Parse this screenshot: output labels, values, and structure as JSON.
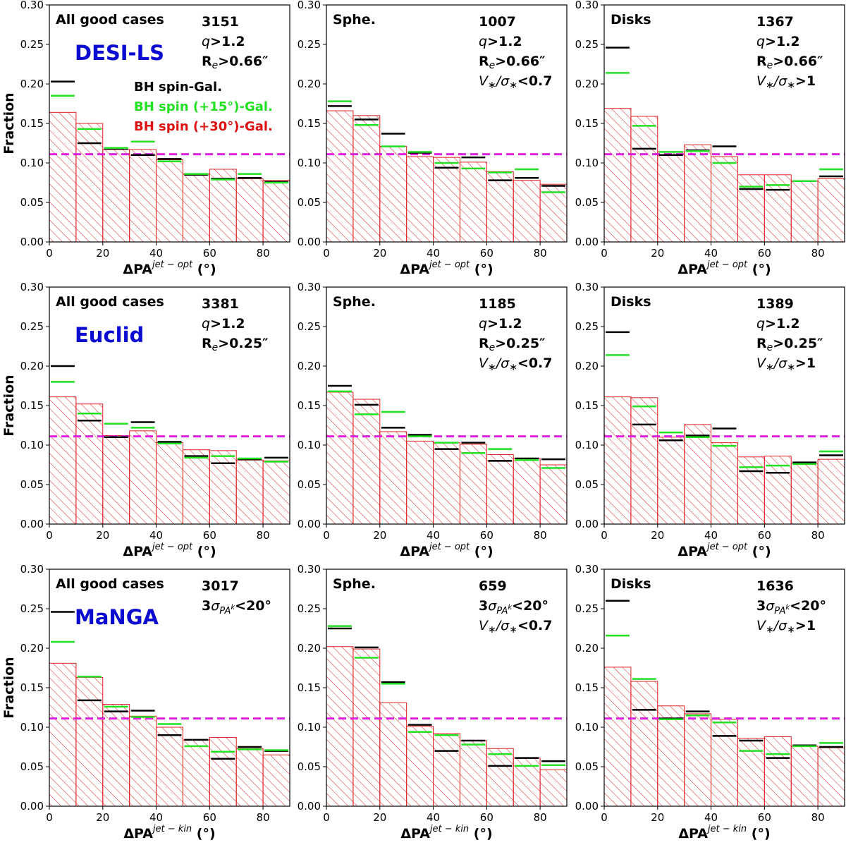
{
  "chart_data": [
    {
      "type": "bar",
      "title": "All good cases",
      "survey": "DESI-LS",
      "count": "3151",
      "criteria": [
        {
          "pre": "",
          "it": "q",
          "post": ">1.2"
        },
        {
          "pre": "R",
          "sub": "e",
          "post": ">0.66″"
        }
      ],
      "xlabel_base": "ΔPA",
      "xlabel_sup": "jet − opt",
      "xlabel_unit": " (°)",
      "ylabel": "Fraction",
      "bins": [
        0,
        10,
        20,
        30,
        40,
        50,
        60,
        70,
        80,
        90
      ],
      "hist_30": [
        0.164,
        0.15,
        0.117,
        0.117,
        0.104,
        0.086,
        0.092,
        0.08,
        0.078
      ],
      "bh_spin": [
        0.203,
        0.125,
        0.118,
        0.11,
        0.105,
        0.085,
        0.08,
        0.081,
        0.076
      ],
      "bh_spin_15": [
        0.185,
        0.143,
        0.119,
        0.127,
        0.102,
        0.086,
        0.079,
        0.086,
        0.075
      ],
      "uniform": 0.111
    },
    {
      "type": "bar",
      "title": "Sphe.",
      "count": "1007",
      "criteria": [
        {
          "pre": "",
          "it": "q",
          "post": ">1.2"
        },
        {
          "pre": "R",
          "sub": "e",
          "post": ">0.66″"
        },
        {
          "vs": true,
          "post": "<0.7"
        }
      ],
      "xlabel_base": "ΔPA",
      "xlabel_sup": "jet − opt",
      "xlabel_unit": " (°)",
      "bins": [
        0,
        10,
        20,
        30,
        40,
        50,
        60,
        70,
        80,
        90
      ],
      "hist_30": [
        0.166,
        0.16,
        0.121,
        0.108,
        0.107,
        0.101,
        0.089,
        0.078,
        0.073
      ],
      "bh_spin": [
        0.172,
        0.155,
        0.137,
        0.113,
        0.094,
        0.107,
        0.078,
        0.081,
        0.071
      ],
      "bh_spin_15": [
        0.178,
        0.148,
        0.121,
        0.114,
        0.1,
        0.093,
        0.088,
        0.092,
        0.063
      ],
      "uniform": 0.111
    },
    {
      "type": "bar",
      "title": "Disks",
      "count": "1367",
      "criteria": [
        {
          "pre": "",
          "it": "q",
          "post": ">1.2"
        },
        {
          "pre": "R",
          "sub": "e",
          "post": ">0.66″"
        },
        {
          "vs": true,
          "post": ">1"
        }
      ],
      "xlabel_base": "ΔPA",
      "xlabel_sup": "jet − opt",
      "xlabel_unit": " (°)",
      "bins": [
        0,
        10,
        20,
        30,
        40,
        50,
        60,
        70,
        80,
        90
      ],
      "hist_30": [
        0.169,
        0.159,
        0.114,
        0.123,
        0.108,
        0.085,
        0.085,
        0.077,
        0.08
      ],
      "bh_spin": [
        0.246,
        0.118,
        0.11,
        0.116,
        0.121,
        0.067,
        0.066,
        0.077,
        0.083
      ],
      "bh_spin_15": [
        0.214,
        0.147,
        0.114,
        0.115,
        0.1,
        0.07,
        0.072,
        0.077,
        0.092
      ],
      "uniform": 0.111
    },
    {
      "type": "bar",
      "title": "All good cases",
      "survey": "Euclid",
      "count": "3381",
      "criteria": [
        {
          "pre": "",
          "it": "q",
          "post": ">1.2"
        },
        {
          "pre": "R",
          "sub": "e",
          "post": ">0.25″"
        }
      ],
      "xlabel_base": "ΔPA",
      "xlabel_sup": "jet − opt",
      "xlabel_unit": " (°)",
      "ylabel": "Fraction",
      "bins": [
        0,
        10,
        20,
        30,
        40,
        50,
        60,
        70,
        80,
        90
      ],
      "hist_30": [
        0.161,
        0.152,
        0.112,
        0.118,
        0.103,
        0.094,
        0.093,
        0.081,
        0.08
      ],
      "bh_spin": [
        0.2,
        0.131,
        0.11,
        0.129,
        0.104,
        0.086,
        0.077,
        0.082,
        0.084
      ],
      "bh_spin_15": [
        0.18,
        0.14,
        0.127,
        0.122,
        0.102,
        0.084,
        0.086,
        0.083,
        0.079
      ],
      "uniform": 0.111
    },
    {
      "type": "bar",
      "title": "Sphe.",
      "count": "1185",
      "criteria": [
        {
          "pre": "",
          "it": "q",
          "post": ">1.2"
        },
        {
          "pre": "R",
          "sub": "e",
          "post": ">0.25″"
        },
        {
          "vs": true,
          "post": "<0.7"
        }
      ],
      "xlabel_base": "ΔPA",
      "xlabel_sup": "jet − opt",
      "xlabel_unit": " (°)",
      "bins": [
        0,
        10,
        20,
        30,
        40,
        50,
        60,
        70,
        80,
        90
      ],
      "hist_30": [
        0.167,
        0.158,
        0.117,
        0.105,
        0.103,
        0.101,
        0.088,
        0.083,
        0.075
      ],
      "bh_spin": [
        0.175,
        0.151,
        0.122,
        0.113,
        0.095,
        0.103,
        0.08,
        0.083,
        0.082
      ],
      "bh_spin_15": [
        0.168,
        0.139,
        0.142,
        0.111,
        0.103,
        0.09,
        0.095,
        0.081,
        0.071
      ],
      "uniform": 0.111
    },
    {
      "type": "bar",
      "title": "Disks",
      "count": "1389",
      "criteria": [
        {
          "pre": "",
          "it": "q",
          "post": ">1.2"
        },
        {
          "pre": "R",
          "sub": "e",
          "post": ">0.25″"
        },
        {
          "vs": true,
          "post": ">1"
        }
      ],
      "xlabel_base": "ΔPA",
      "xlabel_sup": "jet − opt",
      "xlabel_unit": " (°)",
      "bins": [
        0,
        10,
        20,
        30,
        40,
        50,
        60,
        70,
        80,
        90
      ],
      "hist_30": [
        0.161,
        0.16,
        0.11,
        0.126,
        0.103,
        0.085,
        0.086,
        0.077,
        0.082
      ],
      "bh_spin": [
        0.243,
        0.126,
        0.106,
        0.112,
        0.121,
        0.067,
        0.065,
        0.078,
        0.087
      ],
      "bh_spin_15": [
        0.214,
        0.149,
        0.116,
        0.11,
        0.099,
        0.072,
        0.074,
        0.076,
        0.092
      ],
      "uniform": 0.111
    },
    {
      "type": "bar",
      "title": "All good cases",
      "survey": "MaNGA",
      "count": "3017",
      "criteria": [
        {
          "pre": "3",
          "sigma": true,
          "post": "<20°"
        }
      ],
      "xlabel_base": "ΔPA",
      "xlabel_sup": "jet − kin",
      "xlabel_unit": " (°)",
      "ylabel": "Fraction",
      "bins": [
        0,
        10,
        20,
        30,
        40,
        50,
        60,
        70,
        80,
        90
      ],
      "hist_30": [
        0.181,
        0.163,
        0.129,
        0.114,
        0.1,
        0.084,
        0.087,
        0.073,
        0.065
      ],
      "bh_spin": [
        0.246,
        0.134,
        0.12,
        0.121,
        0.09,
        0.084,
        0.06,
        0.075,
        0.07
      ],
      "bh_spin_15": [
        0.208,
        0.164,
        0.126,
        0.113,
        0.104,
        0.076,
        0.069,
        0.072,
        0.071
      ],
      "uniform": 0.111
    },
    {
      "type": "bar",
      "title": "Sphe.",
      "count": "659",
      "criteria": [
        {
          "pre": "3",
          "sigma": true,
          "post": "<20°"
        },
        {
          "vs": true,
          "post": "<0.7"
        }
      ],
      "xlabel_base": "ΔPA",
      "xlabel_sup": "jet − kin",
      "xlabel_unit": " (°)",
      "bins": [
        0,
        10,
        20,
        30,
        40,
        50,
        60,
        70,
        80,
        90
      ],
      "hist_30": [
        0.202,
        0.199,
        0.131,
        0.101,
        0.092,
        0.083,
        0.073,
        0.061,
        0.046
      ],
      "bh_spin": [
        0.225,
        0.201,
        0.157,
        0.103,
        0.07,
        0.083,
        0.051,
        0.061,
        0.057
      ],
      "bh_spin_15": [
        0.228,
        0.188,
        0.155,
        0.094,
        0.09,
        0.078,
        0.066,
        0.051,
        0.052
      ],
      "uniform": 0.111
    },
    {
      "type": "bar",
      "title": "Disks",
      "count": "1636",
      "criteria": [
        {
          "pre": "3",
          "sigma": true,
          "post": "<20°"
        },
        {
          "vs": true,
          "post": ">1"
        }
      ],
      "xlabel_base": "ΔPA",
      "xlabel_sup": "jet − kin",
      "xlabel_unit": " (°)",
      "bins": [
        0,
        10,
        20,
        30,
        40,
        50,
        60,
        70,
        80,
        90
      ],
      "hist_30": [
        0.176,
        0.158,
        0.127,
        0.117,
        0.11,
        0.086,
        0.088,
        0.076,
        0.074
      ],
      "bh_spin": [
        0.26,
        0.122,
        0.111,
        0.12,
        0.089,
        0.083,
        0.061,
        0.077,
        0.075
      ],
      "bh_spin_15": [
        0.216,
        0.161,
        0.11,
        0.115,
        0.106,
        0.07,
        0.066,
        0.076,
        0.08
      ],
      "uniform": 0.111
    }
  ],
  "legend": [
    {
      "label": "BH spin-Gal.",
      "color": "#000000"
    },
    {
      "label": "BH spin (+15°)-Gal.",
      "color": "#22e022"
    },
    {
      "label": "BH spin (+30°)-Gal.",
      "color": "#dd1111"
    }
  ],
  "axes": {
    "ylim": [
      0,
      0.3
    ],
    "yticks": [
      "0.00",
      "0.05",
      "0.10",
      "0.15",
      "0.20",
      "0.25",
      "0.30"
    ],
    "yvals": [
      0,
      0.05,
      0.1,
      0.15,
      0.2,
      0.25,
      0.3
    ],
    "xlim": [
      0,
      90
    ],
    "xticks": [
      0,
      20,
      40,
      60,
      80
    ]
  },
  "colors": {
    "hist": "#dd2222",
    "bh_spin": "#000000",
    "bh_spin_15": "#22e022",
    "uniform": "#e020e0",
    "survey": "#0a0ad0"
  }
}
